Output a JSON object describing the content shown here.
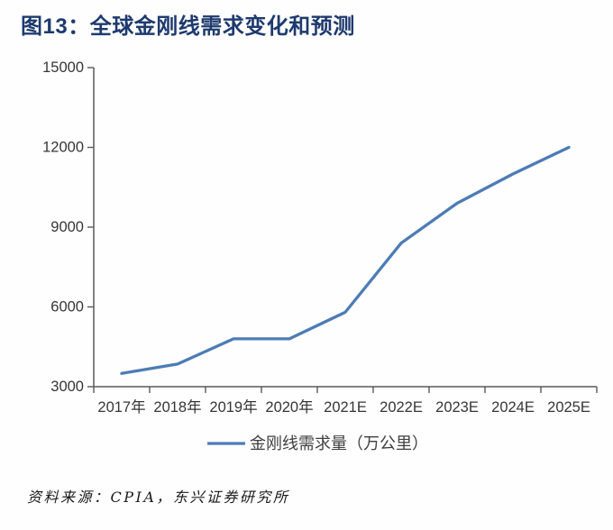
{
  "title": "图13：全球金刚线需求变化和预测",
  "source_note": "资料来源：CPIA，东兴证券研究所",
  "colors": {
    "title": "#1e3a6e",
    "line": "#4d7cb6",
    "axis": "#595959",
    "tick_label": "#363636",
    "legend_label": "#3f3f3f"
  },
  "chart_data": {
    "type": "line",
    "categories": [
      "2017年",
      "2018年",
      "2019年",
      "2020年",
      "2021E",
      "2022E",
      "2023E",
      "2024E",
      "2025E"
    ],
    "series": [
      {
        "name": "金刚线需求量（万公里）",
        "values": [
          3500,
          3850,
          4800,
          4800,
          5800,
          8400,
          9900,
          11000,
          12000
        ]
      }
    ],
    "title": "全球金刚线需求变化和预测",
    "xlabel": "",
    "ylabel": "",
    "ylim": [
      3000,
      15000
    ],
    "yticks": [
      3000,
      6000,
      9000,
      12000,
      15000
    ],
    "grid": false,
    "legend_position": "bottom"
  },
  "legend": {
    "items": [
      {
        "label": "金刚线需求量（万公里）",
        "swatch": "line"
      }
    ]
  }
}
